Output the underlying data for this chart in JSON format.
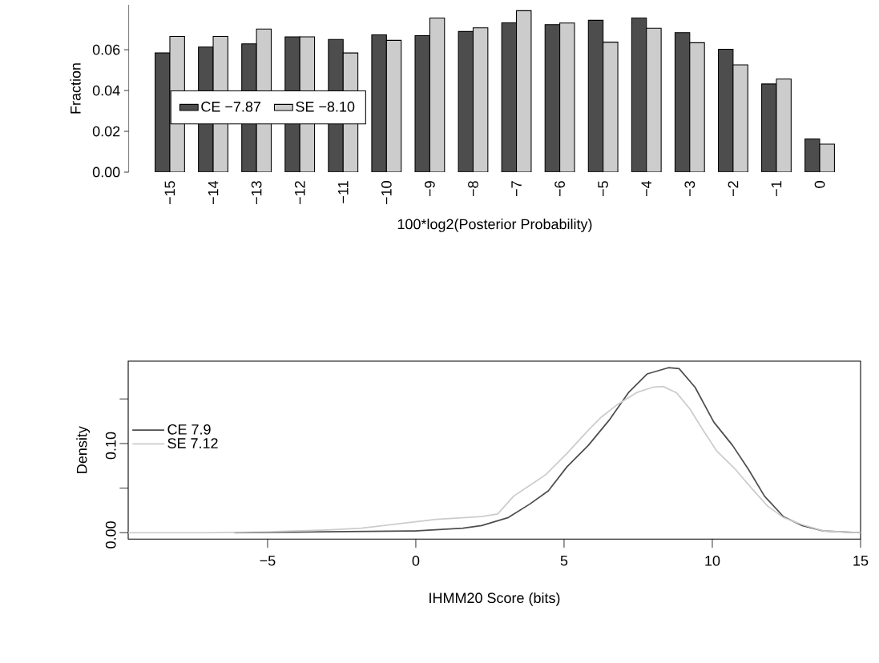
{
  "chart_data": [
    {
      "type": "bar",
      "xlabel": "100*log2(Posterior Probability)",
      "ylabel": "Fraction",
      "categories": [
        "−15",
        "−14",
        "−13",
        "−12",
        "−11",
        "−10",
        "−9",
        "−8",
        "−7",
        "−6",
        "−5",
        "−4",
        "−3",
        "−2",
        "−1",
        "0"
      ],
      "series": [
        {
          "name": "CE −7.87",
          "color": "#4d4d4d",
          "values": [
            0.0584,
            0.0613,
            0.0629,
            0.0663,
            0.065,
            0.0673,
            0.0669,
            0.0689,
            0.0732,
            0.0723,
            0.0744,
            0.0756,
            0.0684,
            0.0602,
            0.0432,
            0.0163
          ]
        },
        {
          "name": "SE −8.10",
          "color": "#cccccc",
          "values": [
            0.0665,
            0.0665,
            0.0701,
            0.0663,
            0.0584,
            0.0646,
            0.0755,
            0.0707,
            0.0791,
            0.0731,
            0.0637,
            0.0705,
            0.0634,
            0.0526,
            0.0456,
            0.0137
          ]
        }
      ],
      "ylim": [
        0,
        0.082
      ],
      "yticks": [
        {
          "value": 0,
          "label": "0.00"
        },
        {
          "value": 0.02,
          "label": "0.02"
        },
        {
          "value": 0.04,
          "label": "0.04"
        },
        {
          "value": 0.06,
          "label": "0.06"
        }
      ],
      "legend": "left"
    },
    {
      "type": "line",
      "xlabel": "IHMM20 Score (bits)",
      "ylabel": "Density",
      "series": [
        {
          "name": "CE 7.9",
          "color": "#4d4d4d",
          "x": [
            -6.12,
            -3,
            -0.04,
            1.59,
            2.22,
            3.12,
            3.84,
            4.47,
            5.1,
            5.82,
            6.54,
            7.17,
            7.8,
            8.52,
            8.88,
            9.42,
            10.05,
            10.68,
            11.22,
            11.76,
            12.4,
            13.03,
            13.75,
            15
          ],
          "values": [
            0,
            0.001,
            0.002,
            0.005,
            0.008,
            0.017,
            0.032,
            0.047,
            0.074,
            0.098,
            0.127,
            0.157,
            0.178,
            0.185,
            0.184,
            0.163,
            0.124,
            0.098,
            0.071,
            0.041,
            0.018,
            0.008,
            0.002,
            0
          ]
        },
        {
          "name": "SE 7.12",
          "color": "#cccccc",
          "x": [
            -9.7,
            -7,
            -5,
            -3,
            -1.84,
            0.68,
            2.22,
            2.76,
            3.3,
            3.84,
            4.38,
            5.1,
            5.82,
            6.27,
            6.81,
            7.44,
            7.98,
            8.34,
            8.79,
            9.24,
            9.69,
            10.14,
            10.78,
            11.32,
            11.86,
            12.4,
            13.03,
            13.75,
            15
          ],
          "values": [
            0,
            0,
            0.001,
            0.003,
            0.005,
            0.015,
            0.018,
            0.021,
            0.041,
            0.053,
            0.065,
            0.089,
            0.115,
            0.13,
            0.144,
            0.157,
            0.163,
            0.164,
            0.157,
            0.139,
            0.115,
            0.092,
            0.071,
            0.05,
            0.03,
            0.017,
            0.009,
            0.002,
            0
          ]
        }
      ],
      "xlim": [
        -9.7,
        15
      ],
      "xticks": [
        {
          "value": -5,
          "label": "−5"
        },
        0,
        5,
        10,
        15
      ],
      "ylim": [
        -0.0072,
        0.1924
      ],
      "yticks": [
        {
          "value": 0,
          "label": "0.00"
        },
        {
          "value": 0.05,
          "label": null
        },
        {
          "value": 0.1,
          "label": "0.10"
        },
        {
          "value": 0.15,
          "label": null
        }
      ],
      "legend": "top left"
    }
  ]
}
